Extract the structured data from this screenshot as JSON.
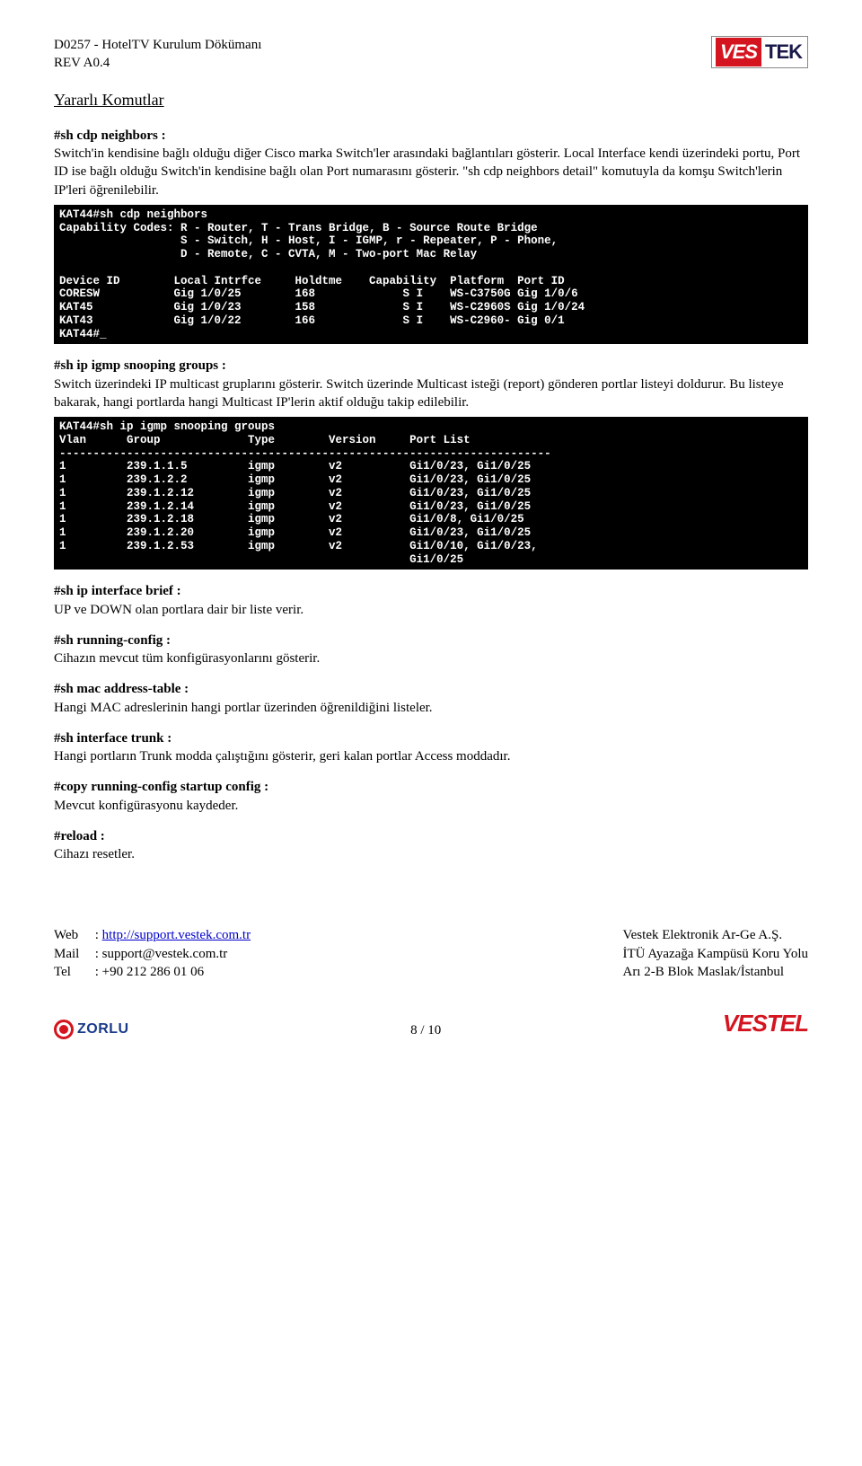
{
  "header": {
    "doc_code": "D0257 - HotelTV Kurulum Dökümanı",
    "rev": "REV A0.4",
    "logo_ves": "VES",
    "logo_tek": "TEK"
  },
  "section_title": "Yararlı Komutlar",
  "cmd1": {
    "title": "#sh cdp neighbors :",
    "para": "Switch'in kendisine bağlı olduğu diğer Cisco marka Switch'ler arasındaki bağlantıları gösterir. Local Interface kendi üzerindeki portu, Port ID ise bağlı olduğu Switch'in kendisine bağlı olan Port numarasını gösterir. \"sh cdp neighbors detail\" komutuyla da komşu Switch'lerin IP'leri öğrenilebilir."
  },
  "terminal1": "KAT44#sh cdp neighbors\nCapability Codes: R - Router, T - Trans Bridge, B - Source Route Bridge\n                  S - Switch, H - Host, I - IGMP, r - Repeater, P - Phone,\n                  D - Remote, C - CVTA, M - Two-port Mac Relay\n\nDevice ID        Local Intrfce     Holdtme    Capability  Platform  Port ID\nCORESW           Gig 1/0/25        168             S I    WS-C3750G Gig 1/0/6\nKAT45            Gig 1/0/23        158             S I    WS-C2960S Gig 1/0/24\nKAT43            Gig 1/0/22        166             S I    WS-C2960- Gig 0/1\nKAT44#_",
  "cmd2": {
    "title": "#sh ip igmp snooping groups :",
    "para": "Switch üzerindeki IP multicast gruplarını gösterir. Switch üzerinde Multicast isteği (report) gönderen portlar listeyi doldurur. Bu listeye bakarak, hangi portlarda hangi Multicast IP'lerin aktif olduğu takip edilebilir."
  },
  "terminal2": "KAT44#sh ip igmp snooping groups\nVlan      Group             Type        Version     Port List\n-------------------------------------------------------------------------\n1         239.1.1.5         igmp        v2          Gi1/0/23, Gi1/0/25\n1         239.1.2.2         igmp        v2          Gi1/0/23, Gi1/0/25\n1         239.1.2.12        igmp        v2          Gi1/0/23, Gi1/0/25\n1         239.1.2.14        igmp        v2          Gi1/0/23, Gi1/0/25\n1         239.1.2.18        igmp        v2          Gi1/0/8, Gi1/0/25\n1         239.1.2.20        igmp        v2          Gi1/0/23, Gi1/0/25\n1         239.1.2.53        igmp        v2          Gi1/0/10, Gi1/0/23,\n                                                    Gi1/0/25",
  "cmd3": {
    "title": "#sh ip interface brief :",
    "para": "UP ve DOWN olan portlara dair bir liste verir."
  },
  "cmd4": {
    "title": "#sh running-config :",
    "para": "Cihazın mevcut tüm konfigürasyonlarını gösterir."
  },
  "cmd5": {
    "title": "#sh mac address-table :",
    "para": "Hangi MAC adreslerinin hangi portlar üzerinden öğrenildiğini listeler."
  },
  "cmd6": {
    "title": "#sh interface trunk :",
    "para": "Hangi portların Trunk modda çalıştığını gösterir, geri kalan portlar Access moddadır."
  },
  "cmd7": {
    "title": "#copy running-config startup config :",
    "para": "Mevcut konfigürasyonu kaydeder."
  },
  "cmd8": {
    "title": "#reload :",
    "para": "Cihazı resetler."
  },
  "footer": {
    "web_lbl": "Web",
    "web_val": ": ",
    "web_link": "http://support.vestek.com.tr",
    "mail_lbl": "Mail",
    "mail_val": ": support@vestek.com.tr",
    "tel_lbl": "Tel",
    "tel_val": ": +90 212 286 01 06",
    "company": "Vestek Elektronik Ar-Ge A.Ş.",
    "addr1": "İTÜ Ayazağa Kampüsü Koru Yolu",
    "addr2": "Arı 2-B Blok Maslak/İstanbul",
    "zorlu": "ZORLU",
    "page": "8 / 10",
    "vestel": "VESTEL"
  }
}
